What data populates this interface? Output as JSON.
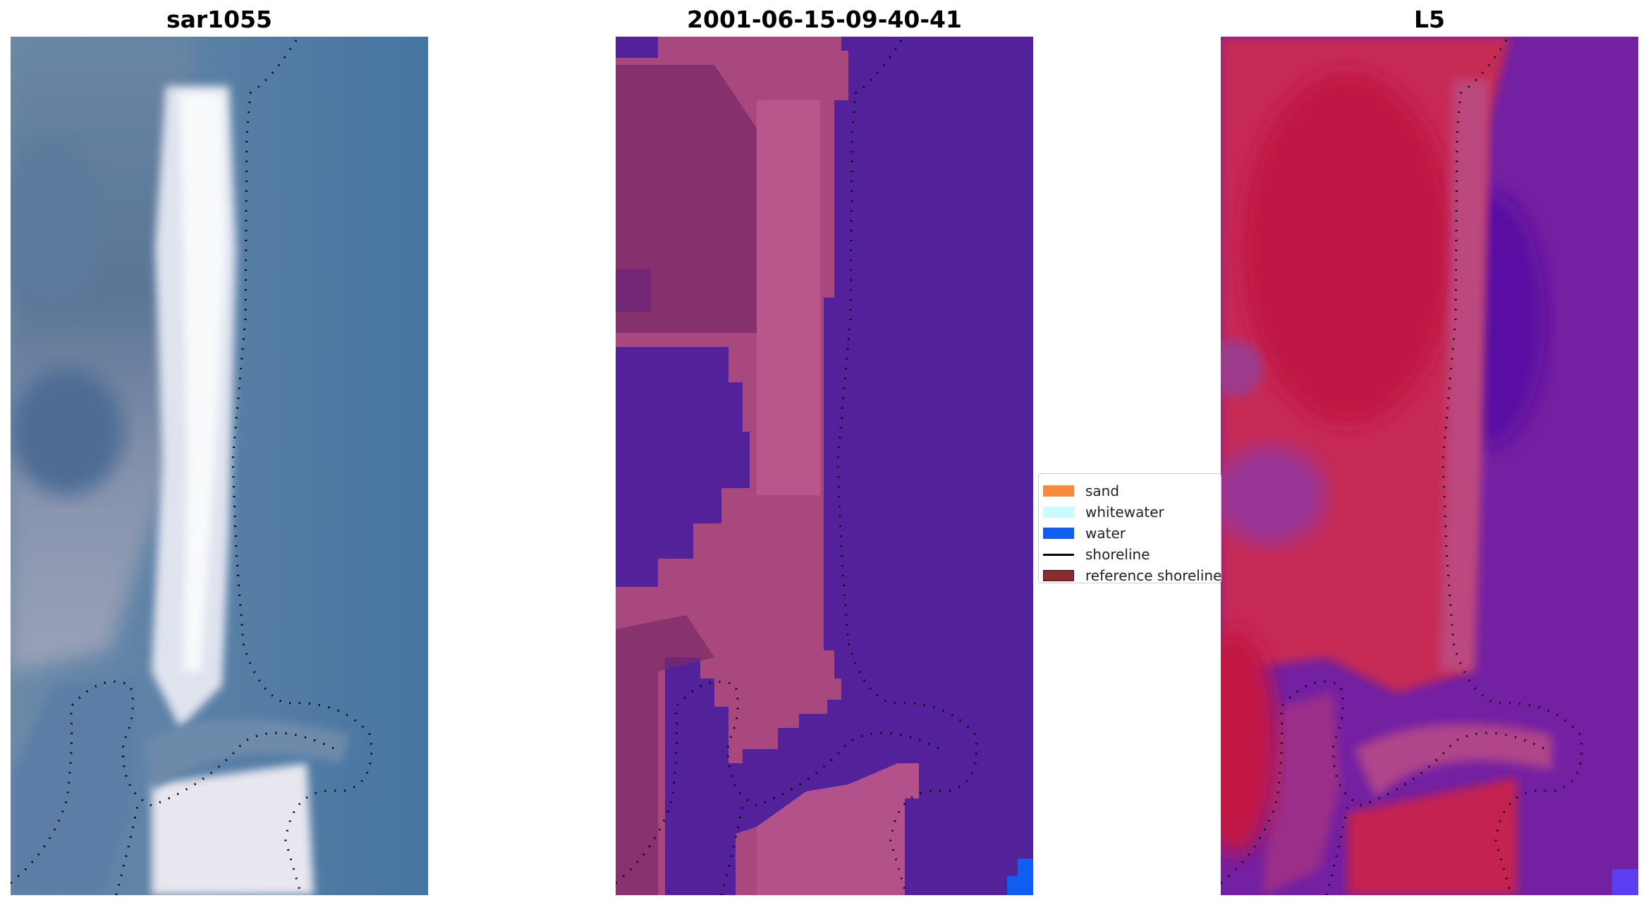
{
  "panels": [
    {
      "title": "sar1055",
      "kind": "rgb"
    },
    {
      "title": "2001-06-15-09-40-41",
      "kind": "classified"
    },
    {
      "title": "L5",
      "kind": "mndwi"
    }
  ],
  "legend": {
    "items": [
      {
        "label": "sand",
        "color": "#f88b3b",
        "type": "patch"
      },
      {
        "label": "whitewater",
        "color": "#c9fdfd",
        "type": "patch"
      },
      {
        "label": "water",
        "color": "#0e5ef2",
        "type": "patch"
      },
      {
        "label": "shoreline",
        "color": "#000000",
        "type": "line"
      },
      {
        "label": "reference shoreline",
        "color": "#8a2d32",
        "type": "patch"
      }
    ]
  },
  "colors": {
    "rgb_water": "#4878a4",
    "rgb_sand": "#e4e8f0",
    "class_water": "#53219a",
    "class_land": "#a9497f",
    "class_land_dark": "#7b2a67",
    "index_land": "#c4244f",
    "index_water": "#6c1b9f"
  }
}
